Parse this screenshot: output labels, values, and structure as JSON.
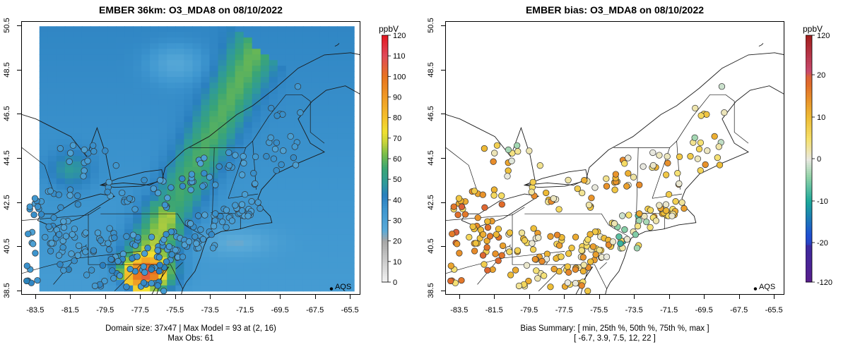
{
  "left": {
    "title": "EMBER 36km: O3_MDA8 on 08/10/2022",
    "x_ticks": [
      "-83.5",
      "-81.5",
      "-79.5",
      "-77.5",
      "-75.5",
      "-73.5",
      "-71.5",
      "-69.5",
      "-67.5",
      "-65.5"
    ],
    "y_ticks": [
      "38.5",
      "40.5",
      "42.5",
      "44.5",
      "46.5",
      "48.5",
      "50.5"
    ],
    "caption_line1": "Domain size: 37x47 | Max Model = 93 at (2, 16)",
    "caption_line2": "Max Obs: 61",
    "colorbar": {
      "unit": "ppbV",
      "labels": [
        "0",
        "10",
        "20",
        "30",
        "40",
        "50",
        "60",
        "70",
        "80",
        "90",
        "100",
        "110",
        "120"
      ]
    },
    "legend": "AQS"
  },
  "right": {
    "title": "EMBER bias: O3_MDA8 on 08/10/2022",
    "x_ticks": [
      "-83.5",
      "-81.5",
      "-79.5",
      "-77.5",
      "-75.5",
      "-73.5",
      "-71.5",
      "-69.5",
      "-67.5",
      "-65.5"
    ],
    "y_ticks": [
      "38.5",
      "40.5",
      "42.5",
      "44.5",
      "46.5",
      "48.5",
      "50.5"
    ],
    "caption_line1": "Bias Summary: [ min, 25th %, 50th %, 75th %, max ]",
    "caption_line2": "[ -6.7,   3.9,   7.5,   12,   22 ]",
    "colorbar": {
      "unit": "ppbV",
      "labels": [
        "120",
        "20",
        "10",
        "0",
        "-10",
        "-20",
        "-120"
      ]
    },
    "legend": "AQS"
  },
  "chart_data": [
    {
      "type": "heatmap",
      "title": "EMBER 36km: O3_MDA8 on 08/10/2022",
      "variable": "O3_MDA8",
      "units": "ppbV",
      "xlim": [
        -84.3,
        -64.9
      ],
      "ylim": [
        38.3,
        50.7
      ],
      "zlim": [
        0,
        120
      ],
      "domain_size": "37x47",
      "max_model": 93,
      "max_model_cell": "(2, 16)",
      "max_obs": 61,
      "observation_network": "AQS"
    },
    {
      "type": "scatter",
      "title": "EMBER bias: O3_MDA8 on 08/10/2022",
      "variable": "bias",
      "units": "ppbV",
      "xlim": [
        -84.3,
        -64.9
      ],
      "ylim": [
        38.3,
        50.7
      ],
      "bias_summary": {
        "min": -6.7,
        "p25": 3.9,
        "median": 7.5,
        "p75": 12,
        "max": 22
      },
      "observation_network": "AQS"
    }
  ]
}
